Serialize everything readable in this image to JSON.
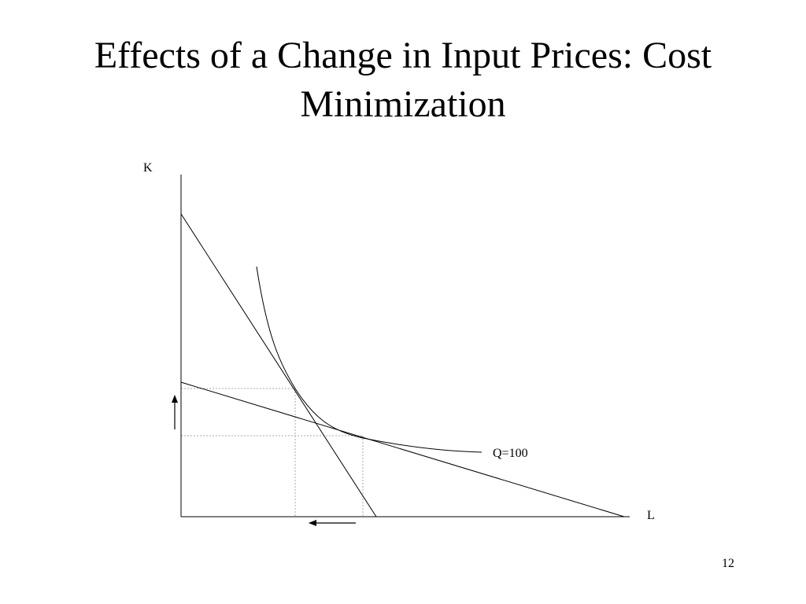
{
  "slide": {
    "title_line1": "Effects of a Change in Input Prices: Cost",
    "title_line2": "Minimization",
    "page_number": "12"
  },
  "diagram": {
    "y_axis_label": "K",
    "x_axis_label": "L",
    "isoquant_label": "Q=100",
    "line_color": "#000000",
    "guide_color": "#aaaaaa"
  }
}
